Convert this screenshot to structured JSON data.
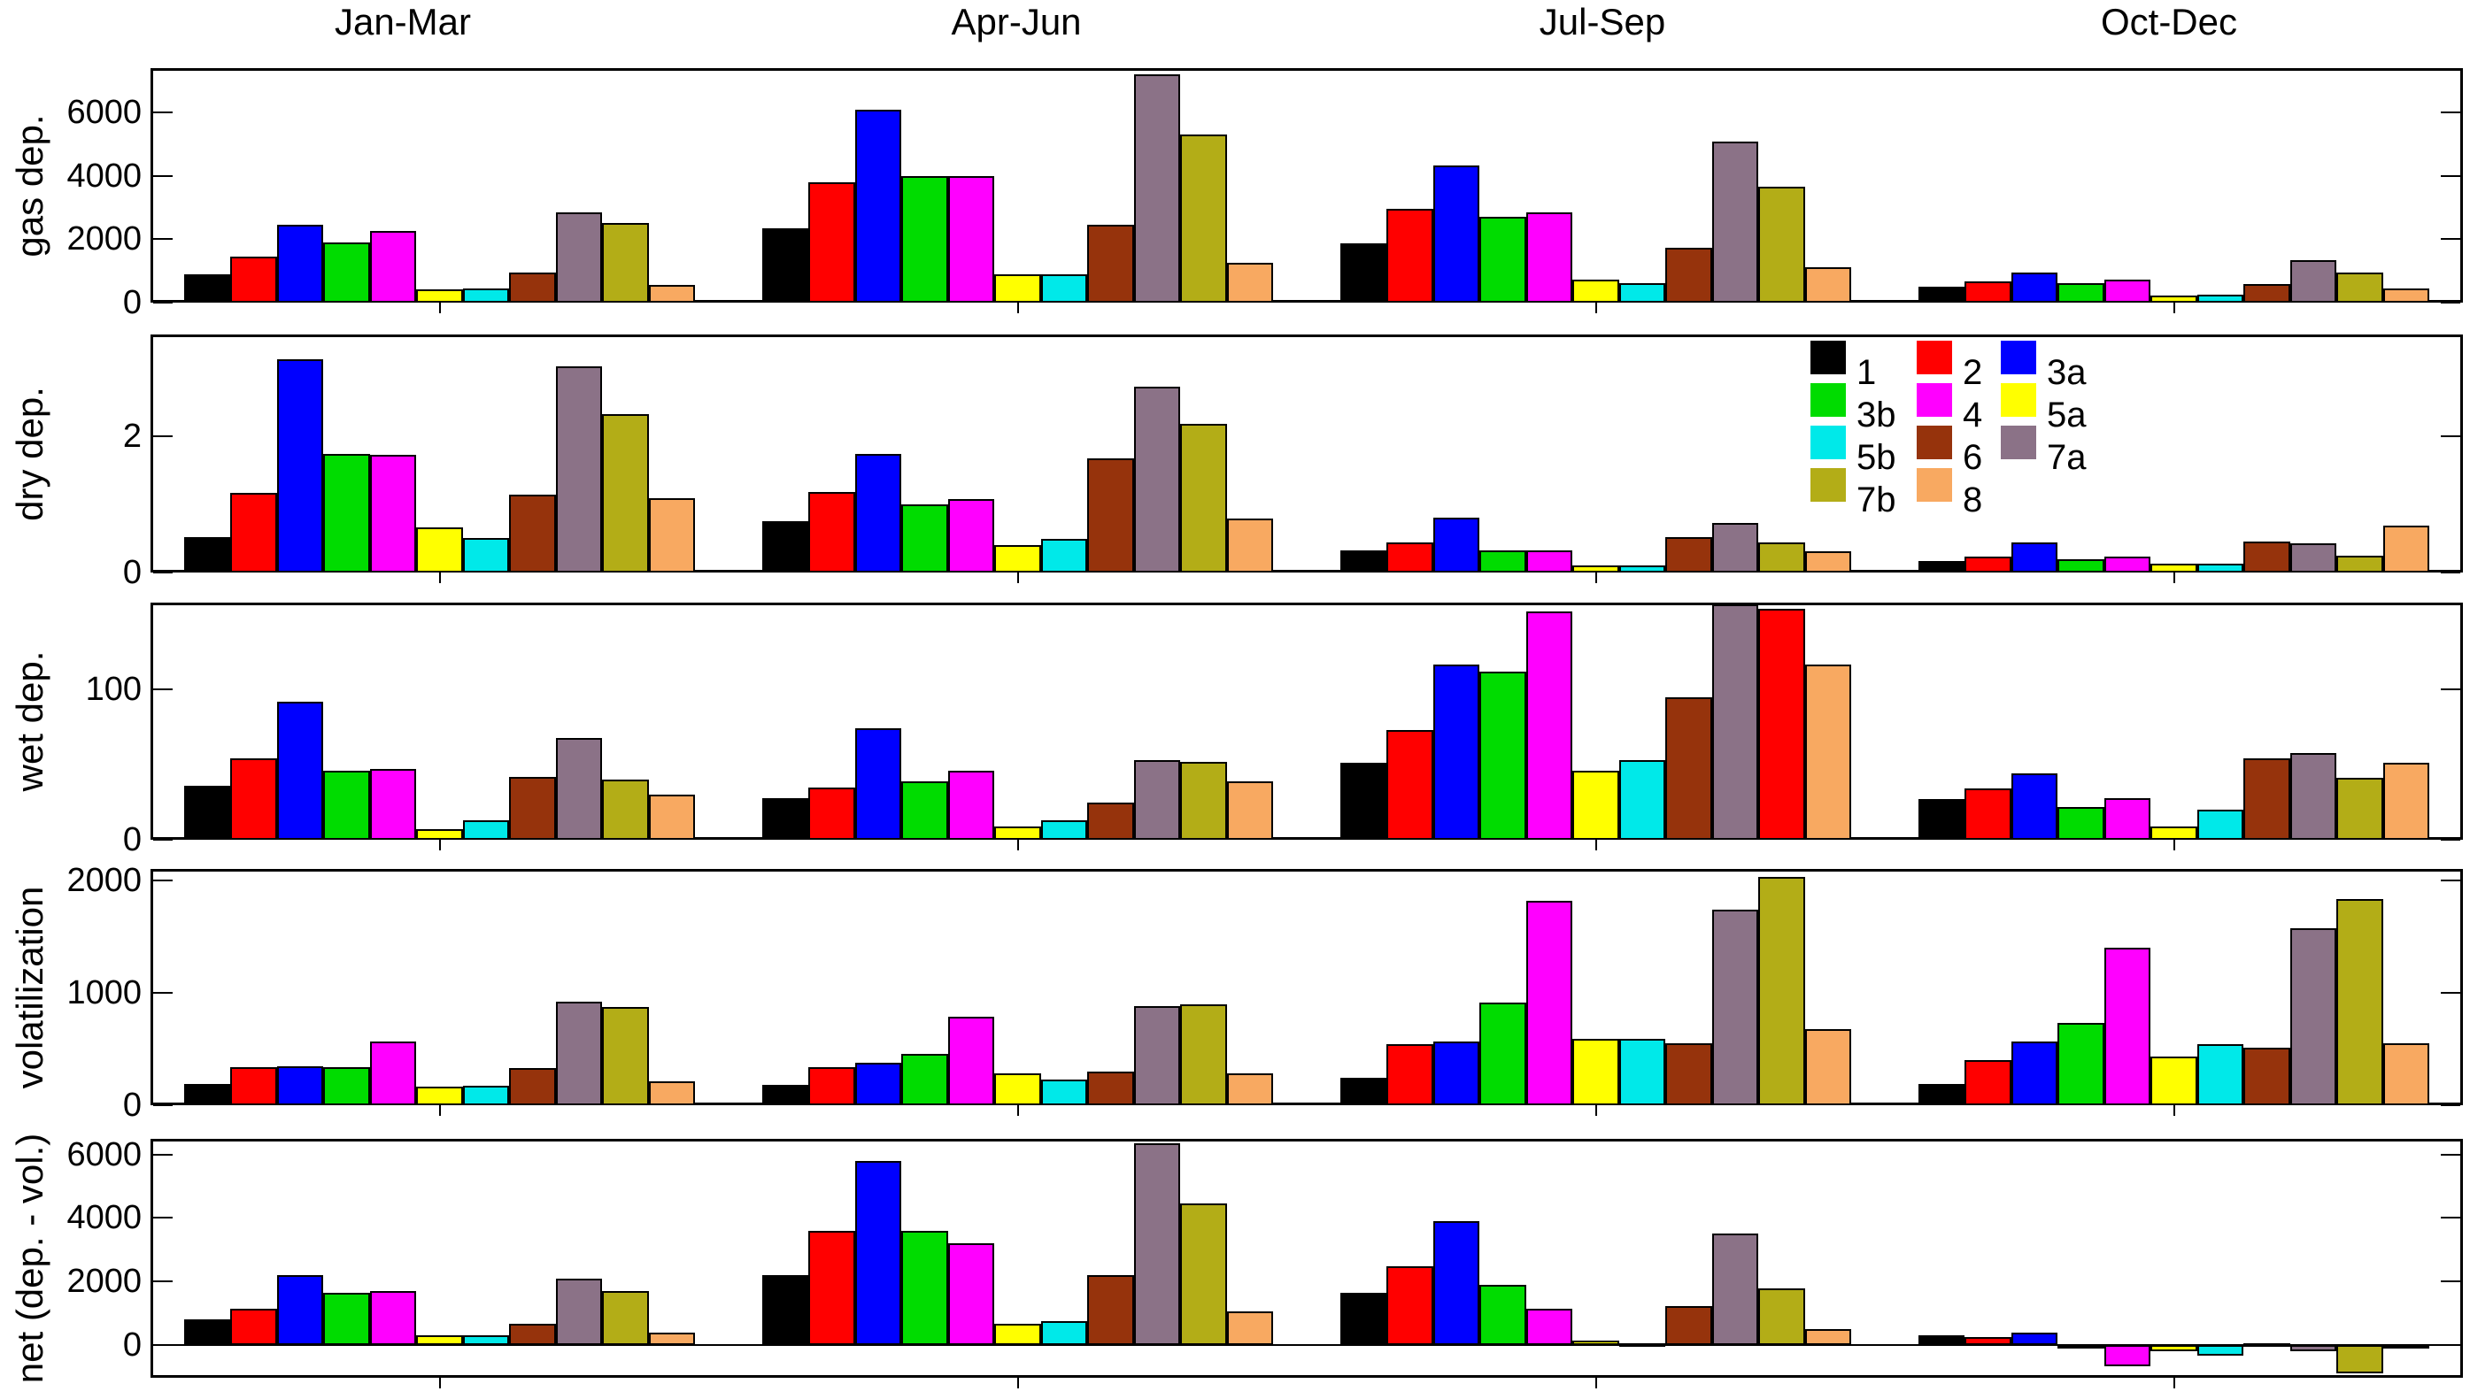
{
  "figure": {
    "background": "#ffffff",
    "axis_color": "#000000"
  },
  "chart_data": {
    "type": "bar",
    "categories": [
      "Jan-Mar",
      "Apr-Jun",
      "Jul-Sep",
      "Oct-Dec"
    ],
    "series_labels": [
      "1",
      "2",
      "3a",
      "3b",
      "4",
      "5a",
      "5b",
      "6",
      "7a",
      "7b",
      "8"
    ],
    "series_colors": [
      "#000000",
      "#ff0000",
      "#0000ff",
      "#00dc00",
      "#ff00ff",
      "#ffff00",
      "#00e9e9",
      "#96330c",
      "#8b7287",
      "#b3ad17",
      "#f8a961"
    ],
    "grid": false,
    "legend_position": "upper-right of dry dep. panel",
    "legend_columns": [
      [
        "1",
        "3b",
        "5b",
        "7b"
      ],
      [
        "2",
        "4",
        "6",
        "8"
      ],
      [
        "3a",
        "5a",
        "7a"
      ]
    ],
    "panels": [
      {
        "ylabel": "gas dep.",
        "ylim": [
          0,
          7400
        ],
        "yticks": [
          0,
          2000,
          4000,
          6000
        ],
        "values": [
          [
            900,
            1450,
            2450,
            1900,
            2250,
            420,
            450,
            960,
            2850,
            2500,
            560
          ],
          [
            2350,
            3800,
            6100,
            4000,
            4000,
            900,
            890,
            2450,
            7200,
            5300,
            1250
          ],
          [
            1880,
            2950,
            4330,
            2720,
            2840,
            720,
            620,
            1740,
            5070,
            3670,
            1110
          ],
          [
            490,
            670,
            950,
            610,
            730,
            210,
            260,
            580,
            1350,
            950,
            440
          ]
        ]
      },
      {
        "ylabel": "dry dep.",
        "ylim": [
          0,
          3.5
        ],
        "yticks": [
          0,
          2
        ],
        "values": [
          [
            0.52,
            1.17,
            3.13,
            1.74,
            1.73,
            0.67,
            0.51,
            1.14,
            3.03,
            2.33,
            1.09
          ],
          [
            0.76,
            1.18,
            1.75,
            1.0,
            1.08,
            0.4,
            0.49,
            1.68,
            2.73,
            2.18,
            0.8
          ],
          [
            0.33,
            0.44,
            0.81,
            0.32,
            0.33,
            0.1,
            0.11,
            0.52,
            0.73,
            0.44,
            0.31
          ],
          [
            0.17,
            0.24,
            0.44,
            0.19,
            0.24,
            0.13,
            0.13,
            0.45,
            0.43,
            0.25,
            0.69
          ]
        ]
      },
      {
        "ylabel": "wet dep.",
        "ylim": [
          0,
          158
        ],
        "yticks": [
          0,
          100
        ],
        "values": [
          [
            36,
            54,
            92,
            46,
            47,
            7,
            13,
            42,
            68,
            40,
            30
          ],
          [
            28,
            35,
            74,
            39,
            46,
            9,
            13,
            25,
            53,
            52,
            39
          ],
          [
            51,
            73,
            117,
            112,
            152,
            46,
            53,
            95,
            157,
            154,
            117
          ],
          [
            27,
            34,
            44,
            22,
            28,
            9,
            20,
            54,
            58,
            41,
            51
          ]
        ]
      },
      {
        "ylabel": "volatilization",
        "ylim": [
          0,
          2100
        ],
        "yticks": [
          0,
          1000,
          2000
        ],
        "values": [
          [
            190,
            340,
            350,
            340,
            570,
            165,
            170,
            330,
            920,
            870,
            210
          ],
          [
            180,
            340,
            380,
            460,
            790,
            280,
            230,
            300,
            880,
            900,
            280
          ],
          [
            240,
            540,
            570,
            910,
            1820,
            590,
            590,
            550,
            1740,
            2030,
            680
          ],
          [
            190,
            400,
            570,
            730,
            1400,
            430,
            540,
            510,
            1570,
            1830,
            550
          ]
        ]
      },
      {
        "ylabel": "net (dep. - vol.)",
        "ylim": [
          -1030,
          6490
        ],
        "yticks": [
          0,
          2000,
          4000,
          6000
        ],
        "values": [
          [
            800,
            1150,
            2200,
            1640,
            1700,
            320,
            320,
            670,
            2080,
            1700,
            400
          ],
          [
            2200,
            3580,
            5800,
            3600,
            3200,
            670,
            760,
            2200,
            6350,
            4450,
            1060
          ],
          [
            1650,
            2470,
            3900,
            1900,
            1130,
            140,
            50,
            1230,
            3500,
            1790,
            490
          ],
          [
            300,
            250,
            390,
            -120,
            -680,
            -200,
            -330,
            60,
            -200,
            -900,
            -90
          ]
        ]
      }
    ],
    "color_overrides": [
      {
        "panel": 2,
        "group": 2,
        "series": 9,
        "color": "#ff0000"
      }
    ]
  }
}
